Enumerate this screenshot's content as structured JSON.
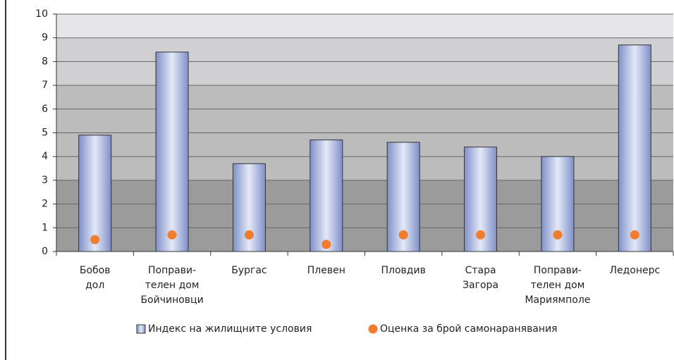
{
  "chart_data": {
    "type": "bar_dot",
    "categories": [
      [
        "Бобов",
        "дол"
      ],
      [
        "Поправи-",
        "телен дом",
        "Бойчиновци"
      ],
      [
        "Бургас"
      ],
      [
        "Плевен"
      ],
      [
        "Пловдив"
      ],
      [
        "Стара",
        "Загора"
      ],
      [
        "Поправи-",
        "телен дом",
        "Мариямполе"
      ],
      [
        "Ледонерс"
      ]
    ],
    "series": [
      {
        "name": "Индекс на жилищните условия",
        "color": "#9aa8d8",
        "mark": "bar",
        "values": [
          4.9,
          8.4,
          3.7,
          4.7,
          4.6,
          4.4,
          4.0,
          8.7
        ]
      },
      {
        "name": "Оценка за брой самонаранявания",
        "color": "#f07c2e",
        "mark": "dot",
        "values": [
          0.5,
          0.7,
          0.7,
          0.3,
          0.7,
          0.7,
          0.7,
          0.7
        ]
      }
    ],
    "ylim": [
      0,
      10
    ],
    "yticks": [
      0,
      1,
      2,
      3,
      4,
      5,
      6,
      7,
      8,
      9,
      10
    ],
    "background_bands": [
      {
        "from": 0,
        "to": 3,
        "color": "#9b9b9b"
      },
      {
        "from": 3,
        "to": 7,
        "color": "#bcbcbd"
      },
      {
        "from": 7,
        "to": 9,
        "color": "#d0d0d2"
      },
      {
        "from": 9,
        "to": 10,
        "color": "#e6e6e8"
      }
    ],
    "legend": "bottom"
  }
}
